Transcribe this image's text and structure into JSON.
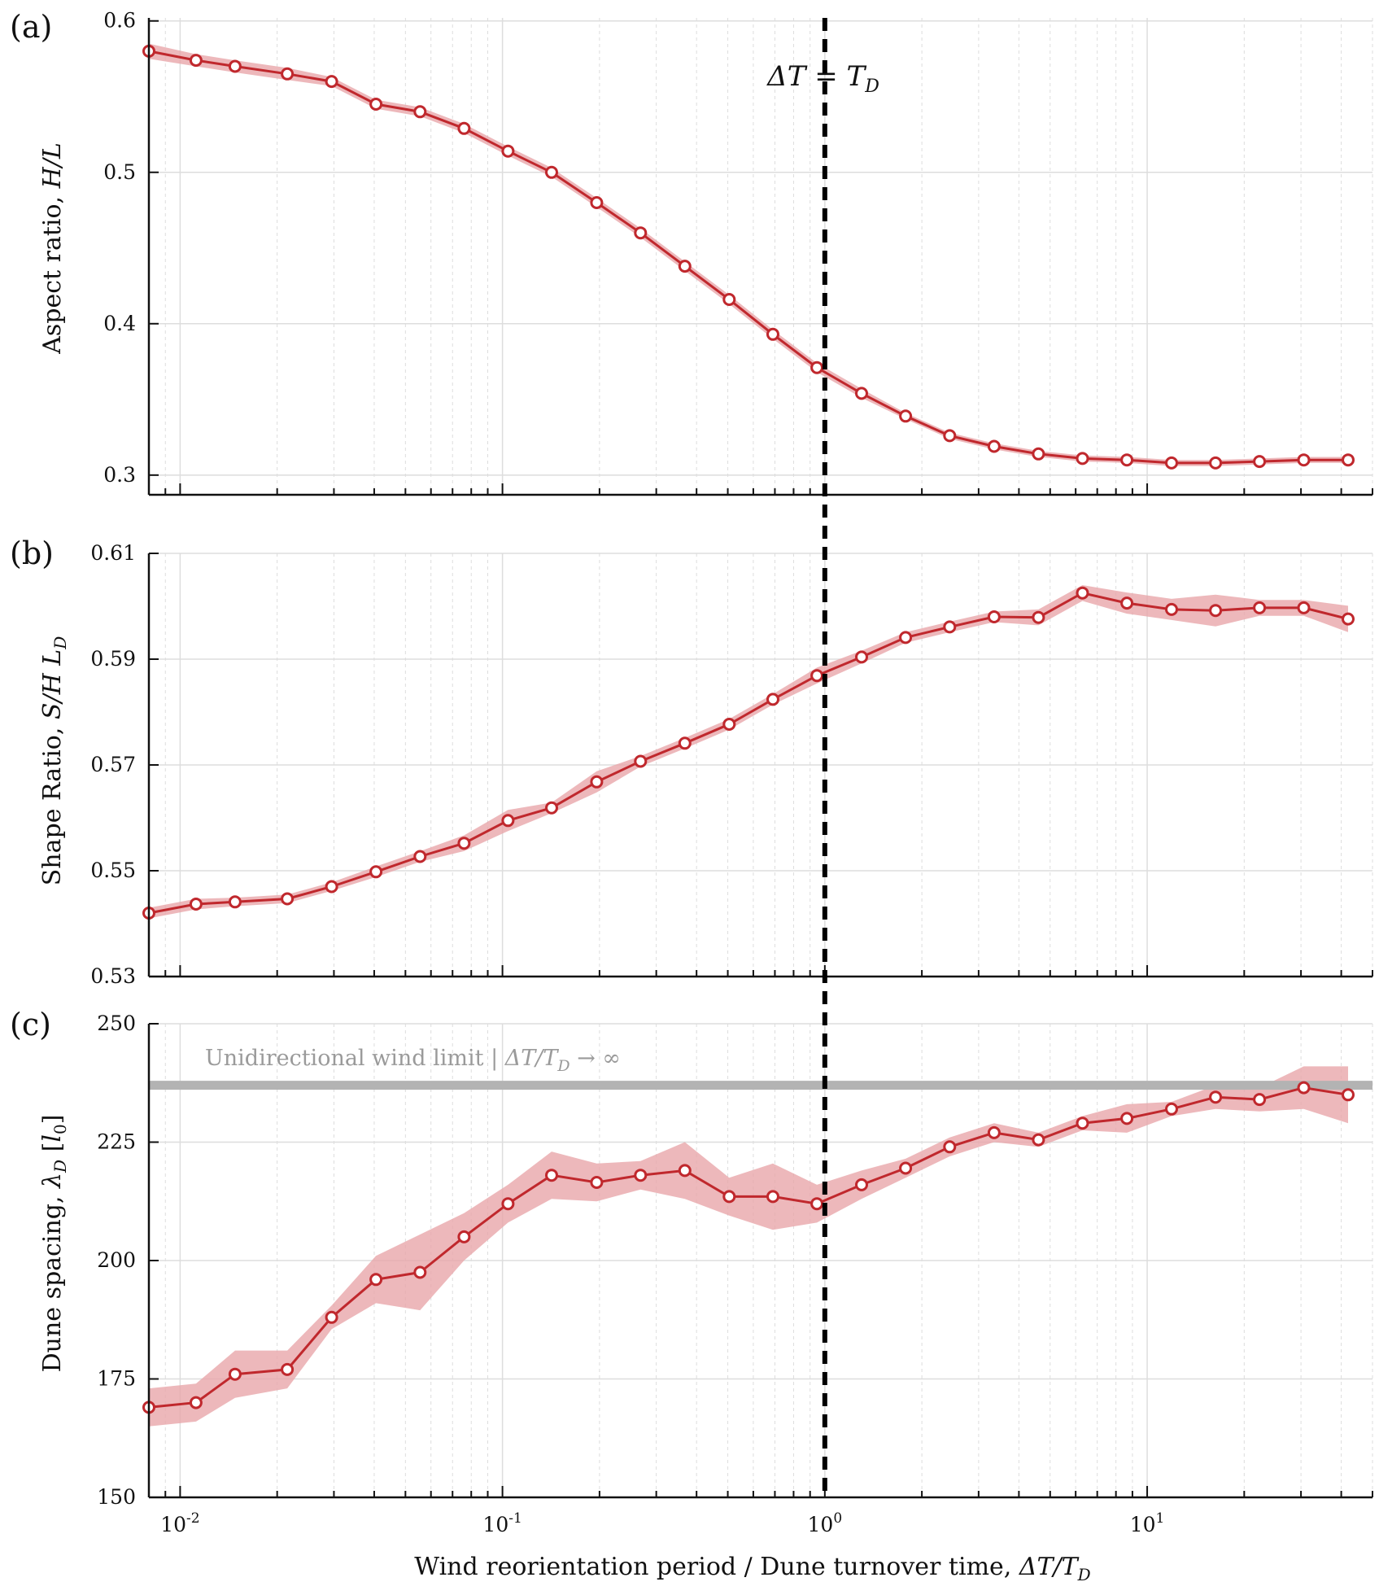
{
  "chart_data": [
    {
      "type": "line",
      "panel": "(a)",
      "ylabel": "Aspect ratio, H/L",
      "xscale": "log",
      "ylim": [
        0.287,
        0.602
      ],
      "yticks": [
        0.3,
        0.4,
        0.5,
        0.6
      ],
      "ytick_labels": [
        "0.3",
        "0.4",
        "0.5",
        "0.6"
      ],
      "color": "#c0282d",
      "band_color": "#e8a6aa",
      "series": [
        {
          "x": [
            0.008,
            0.0112,
            0.0148,
            0.0215,
            0.0295,
            0.0405,
            0.0555,
            0.076,
            0.104,
            0.142,
            0.196,
            0.268,
            0.368,
            0.505,
            0.69,
            0.945,
            1.3,
            1.78,
            2.44,
            3.35,
            4.6,
            6.3,
            8.65,
            11.9,
            16.3,
            22.3,
            30.6,
            42.0
          ],
          "y": [
            0.58,
            0.574,
            0.57,
            0.565,
            0.56,
            0.545,
            0.54,
            0.529,
            0.514,
            0.5,
            0.48,
            0.46,
            0.438,
            0.416,
            0.393,
            0.371,
            0.354,
            0.339,
            0.326,
            0.319,
            0.314,
            0.311,
            0.31,
            0.308,
            0.308,
            0.309,
            0.31,
            0.31
          ],
          "err": [
            0.005,
            0.004,
            0.004,
            0.004,
            0.003,
            0.003,
            0.003,
            0.003,
            0.003,
            0.003,
            0.003,
            0.003,
            0.003,
            0.003,
            0.003,
            0.003,
            0.003,
            0.002,
            0.002,
            0.002,
            0.002,
            0.002,
            0.002,
            0.002,
            0.002,
            0.002,
            0.002,
            0.002
          ]
        }
      ]
    },
    {
      "type": "line",
      "panel": "(b)",
      "ylabel": "Shape Ratio, S/H L_D",
      "xscale": "log",
      "ylim": [
        0.53,
        0.61
      ],
      "yticks": [
        0.53,
        0.55,
        0.57,
        0.59,
        0.61
      ],
      "ytick_labels": [
        "0.53",
        "0.55",
        "0.57",
        "0.59",
        "0.61"
      ],
      "color": "#c0282d",
      "band_color": "#e8a6aa",
      "series": [
        {
          "x": [
            0.008,
            0.0112,
            0.0148,
            0.0215,
            0.0295,
            0.0405,
            0.0555,
            0.076,
            0.104,
            0.142,
            0.196,
            0.268,
            0.368,
            0.505,
            0.69,
            0.945,
            1.3,
            1.78,
            2.44,
            3.35,
            4.6,
            6.3,
            8.65,
            11.9,
            16.3,
            22.3,
            30.6,
            42.0
          ],
          "y": [
            0.542,
            0.5437,
            0.5441,
            0.5447,
            0.547,
            0.5498,
            0.5527,
            0.5552,
            0.5595,
            0.5619,
            0.5668,
            0.5707,
            0.5741,
            0.5777,
            0.5824,
            0.5869,
            0.5904,
            0.5941,
            0.5961,
            0.598,
            0.5979,
            0.6025,
            0.6006,
            0.5994,
            0.5992,
            0.5997,
            0.5997,
            0.5976
          ],
          "err": [
            0.001,
            0.001,
            0.0008,
            0.0008,
            0.0008,
            0.001,
            0.001,
            0.0015,
            0.002,
            0.001,
            0.002,
            0.001,
            0.001,
            0.001,
            0.001,
            0.0015,
            0.0012,
            0.001,
            0.001,
            0.001,
            0.0015,
            0.0015,
            0.002,
            0.002,
            0.003,
            0.0015,
            0.0015,
            0.0025
          ]
        }
      ]
    },
    {
      "type": "line",
      "panel": "(c)",
      "ylabel": "Dune spacing, λ_D [l_0]",
      "xlabel": "Wind reorientation period / Dune turnover time, ΔT/T_D",
      "xscale": "log",
      "xlim": [
        0.008,
        50
      ],
      "ylim": [
        150,
        250
      ],
      "yticks": [
        150,
        175,
        200,
        225,
        250
      ],
      "ytick_labels": [
        "150",
        "175",
        "200",
        "225",
        "250"
      ],
      "xtick_labels": [
        "10^-2",
        "10^-1",
        "10^0",
        "10^1"
      ],
      "color": "#c0282d",
      "band_color": "#e8a6aa",
      "reference_line": {
        "y": 237,
        "color": "#b3b3b3",
        "label": "Unidirectional wind limit | ΔT/T_D → ∞"
      },
      "series": [
        {
          "x": [
            0.008,
            0.0112,
            0.0148,
            0.0215,
            0.0295,
            0.0405,
            0.0555,
            0.076,
            0.104,
            0.142,
            0.196,
            0.268,
            0.368,
            0.505,
            0.69,
            0.945,
            1.3,
            1.78,
            2.44,
            3.35,
            4.6,
            6.3,
            8.65,
            11.9,
            16.3,
            22.3,
            30.6,
            42.0
          ],
          "y": [
            169,
            170,
            176,
            177,
            188,
            196,
            197.5,
            205,
            212,
            218,
            216.5,
            218,
            219,
            213.5,
            213.5,
            212,
            216,
            219.5,
            224,
            227,
            225.5,
            229,
            230,
            232,
            234.5,
            234,
            236.5,
            235
          ],
          "err": [
            4,
            4,
            5,
            4,
            2.5,
            5,
            8,
            5,
            4,
            5,
            4,
            3,
            6,
            4,
            7,
            4,
            3,
            2,
            2,
            2,
            1.5,
            1.5,
            3,
            1.5,
            2.5,
            2.5,
            4.5,
            6
          ]
        }
      ]
    }
  ],
  "labels": {
    "panel_a": "(a)",
    "panel_b": "(b)",
    "panel_c": "(c)",
    "ylabel_a": "Aspect ratio, ",
    "ylabel_a_var": "H/L",
    "ylabel_b": "Shape Ratio, ",
    "ylabel_b_var": "S/H L",
    "ylabel_b_sub": "D",
    "ylabel_c": "Dune spacing, ",
    "ylabel_c_var": "λ",
    "ylabel_c_sub": "D",
    "ylabel_c_unit_l": "l",
    "ylabel_c_unit_sub": "0",
    "xlabel": "Wind reorientation period / Dune turnover time, ",
    "xlabel_var": "ΔT/T",
    "xlabel_sub": "D",
    "dashed_line_label": "ΔT = T",
    "dashed_line_sub": "D",
    "limit_label": "Unidirectional wind limit  |  ",
    "limit_var": "ΔT/T",
    "limit_sub": "D",
    "limit_end": " → ∞",
    "xtick_base": "10",
    "xtick_exps": [
      "-2",
      "-1",
      "0",
      "1"
    ]
  },
  "colors": {
    "line": "#c0282d",
    "band": "#e8a6aa",
    "limit": "#b3b3b3",
    "grid": "#dddddd",
    "dashed": "#000000"
  }
}
